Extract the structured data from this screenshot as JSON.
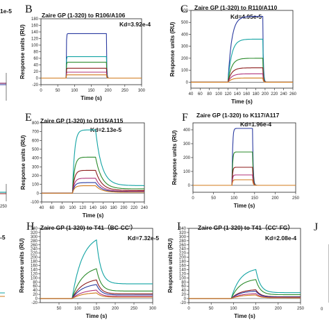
{
  "colors": [
    "#0b2a8c",
    "#12a3a3",
    "#2a8a2a",
    "#8b1a1a",
    "#b0337a",
    "#2a3aa0",
    "#d07a1a"
  ],
  "fragments": [
    {
      "id": "frag-a-kd",
      "text": "1e-5"
    },
    {
      "id": "frag-g-kd",
      "text": "-5"
    },
    {
      "id": "frag-d-tick",
      "text": "250"
    },
    {
      "id": "frag-j-letter",
      "text": "J"
    },
    {
      "id": "frag-j-tick",
      "text": "0"
    }
  ],
  "chart_data": [
    {
      "id": "B",
      "type": "line",
      "letter": "B",
      "title": "Zaire GP (1-320) to R106/A106",
      "kd": "Kd=3.92e-4",
      "xlabel": "Time (s)",
      "ylabel": "Response units (RU)",
      "xlim": [
        0,
        300
      ],
      "ylim": [
        -20,
        180
      ],
      "xticks": [
        0,
        50,
        100,
        150,
        200,
        250,
        300
      ],
      "yticks": [
        -20,
        0,
        20,
        40,
        60,
        80,
        100,
        120,
        140,
        160,
        180
      ],
      "shape": {
        "t_on": 75,
        "t_off": 195,
        "tau_on": 0.7,
        "tau_off": 1.0,
        "base": 0,
        "spike": 0,
        "residual": 0
      },
      "series": [
        {
          "plateau": 135,
          "color_index": 5
        },
        {
          "plateau": 65,
          "color_index": 1
        },
        {
          "plateau": 48,
          "color_index": 2
        },
        {
          "plateau": 30,
          "color_index": 3
        },
        {
          "plateau": 18,
          "color_index": 4
        },
        {
          "plateau": 10,
          "color_index": 6
        }
      ]
    },
    {
      "id": "C",
      "type": "line",
      "letter": "C",
      "title": "Zaire GP (1-320) to R110/A110",
      "kd": "Kd=4.95e-5",
      "xlabel": "Time (s)",
      "ylabel": "Response units (RU)",
      "xlim": [
        40,
        260
      ],
      "ylim": [
        -50,
        600
      ],
      "xticks": [
        40,
        60,
        80,
        100,
        120,
        140,
        160,
        180,
        200,
        220,
        240,
        260
      ],
      "yticks": [
        0,
        100,
        200,
        300,
        400,
        500,
        600
      ],
      "shape": {
        "t_on": 120,
        "t_off": 195,
        "tau_on": 8,
        "tau_off": 1.2,
        "base": 0,
        "spike": 0,
        "residual": 0
      },
      "series": [
        {
          "plateau": 550,
          "color_index": 5
        },
        {
          "plateau": 360,
          "color_index": 1
        },
        {
          "plateau": 200,
          "color_index": 2
        },
        {
          "plateau": 120,
          "color_index": 3
        },
        {
          "plateau": 70,
          "color_index": 4
        },
        {
          "plateau": 35,
          "color_index": 6
        }
      ]
    },
    {
      "id": "E",
      "type": "line",
      "letter": "E",
      "title": "Zaire GP (1-320) to D115/A115",
      "kd": "Kd=2.13e-5",
      "xlabel": "Time (s)",
      "ylabel": "Response units (RU)",
      "xlim": [
        40,
        240
      ],
      "ylim": [
        -100,
        800
      ],
      "xticks": [
        40,
        60,
        80,
        100,
        120,
        140,
        160,
        180,
        200,
        220,
        240
      ],
      "yticks": [
        -100,
        0,
        100,
        200,
        300,
        400,
        500,
        600,
        700,
        800
      ],
      "shape": {
        "t_on": 100,
        "t_off": 145,
        "tau_on": 4,
        "tau_off": 12,
        "base": 0,
        "spike": 0,
        "residual": 0.12
      },
      "series": [
        {
          "plateau": 720,
          "color_index": 1
        },
        {
          "plateau": 410,
          "color_index": 2
        },
        {
          "plateau": 260,
          "color_index": 3
        },
        {
          "plateau": 170,
          "color_index": 4
        },
        {
          "plateau": 120,
          "color_index": 5
        },
        {
          "plateau": 85,
          "color_index": 6
        }
      ]
    },
    {
      "id": "F",
      "type": "line",
      "letter": "F",
      "title": "Zaire GP (1-320) to K117/A117",
      "kd": "Kd=1.96e-4",
      "xlabel": "Time (s)",
      "ylabel": "Response units (RU)",
      "xlim": [
        0,
        250
      ],
      "ylim": [
        -50,
        450
      ],
      "xticks": [
        0,
        50,
        100,
        150,
        200,
        250
      ],
      "yticks": [
        0,
        100,
        200,
        300,
        400
      ],
      "shape": {
        "t_on": 95,
        "t_off": 145,
        "tau_on": 1.5,
        "tau_off": 1.5,
        "base": 0,
        "spike": 0,
        "residual": 0
      },
      "series": [
        {
          "plateau": 410,
          "color_index": 5
        },
        {
          "plateau": 240,
          "color_index": 2
        },
        {
          "plateau": 130,
          "color_index": 3
        },
        {
          "plateau": 75,
          "color_index": 4
        },
        {
          "plateau": 40,
          "color_index": 6
        }
      ]
    },
    {
      "id": "H",
      "type": "line",
      "letter": "H",
      "title": "Zaire GP (1-320) to T41（BC-CC'）",
      "kd": "Kd=7.32e-5",
      "xlabel": "Time (s)",
      "ylabel": "Response units (RU)",
      "xlim": [
        0,
        300
      ],
      "ylim": [
        -20,
        340
      ],
      "xticks": [
        50,
        100,
        150,
        200,
        250,
        300
      ],
      "yticks": [
        -20,
        0,
        20,
        40,
        60,
        80,
        100,
        120,
        140,
        160,
        180,
        200,
        220,
        240,
        260,
        280,
        300,
        320,
        340
      ],
      "shape": {
        "t_on": 85,
        "t_off": 150,
        "tau_on": 28,
        "tau_off": 12,
        "base": 0,
        "spike": 0,
        "residual": 0.25
      },
      "series": [
        {
          "plateau": 315,
          "color_index": 1
        },
        {
          "plateau": 160,
          "color_index": 2
        },
        {
          "plateau": 100,
          "color_index": 3
        },
        {
          "plateau": 75,
          "color_index": 5
        },
        {
          "plateau": 45,
          "color_index": 4
        },
        {
          "plateau": 30,
          "color_index": 6
        }
      ]
    },
    {
      "id": "I",
      "type": "line",
      "letter": "I",
      "title": "Zaire GP (1-320) to T41（CC'-FG）",
      "kd": "Kd=2.08e-4",
      "xlabel": "Time (s)",
      "ylabel": "Response units (RU)",
      "xlim": [
        0,
        250
      ],
      "ylim": [
        -20,
        340
      ],
      "xticks": [
        0,
        50,
        100,
        150,
        200,
        250
      ],
      "yticks": [
        -20,
        0,
        20,
        40,
        60,
        80,
        100,
        120,
        140,
        160,
        180,
        200,
        220,
        240,
        260,
        280,
        300,
        320,
        340
      ],
      "shape": {
        "t_on": 95,
        "t_off": 150,
        "tau_on": 20,
        "tau_off": 10,
        "base": 0,
        "spike": 0,
        "residual": 0.2
      },
      "series": [
        {
          "plateau": 150,
          "color_index": 1
        },
        {
          "plateau": 98,
          "color_index": 2
        },
        {
          "plateau": 45,
          "color_index": 3
        },
        {
          "plateau": 38,
          "color_index": 5
        },
        {
          "plateau": 25,
          "color_index": 4
        },
        {
          "plateau": 18,
          "color_index": 6
        }
      ]
    }
  ]
}
